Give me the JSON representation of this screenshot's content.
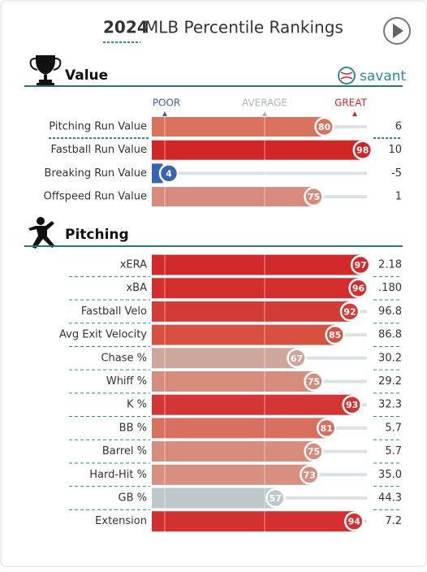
{
  "header": {
    "year": "2024",
    "title": "MLB Percentile Rankings",
    "brand": "savant"
  },
  "scale": {
    "labels": [
      "POOR",
      "AVERAGE",
      "GREAT"
    ]
  },
  "chart_data": [
    {
      "type": "percentile",
      "title": "Value",
      "xlim": [
        0,
        100
      ],
      "categories": [
        "Pitching Run Value",
        "Fastball Run Value",
        "Breaking Run Value",
        "Offspeed Run Value"
      ],
      "values": [
        80,
        98,
        4,
        75
      ],
      "colors": [
        "#d9735f",
        "#d22626",
        "#3862b2",
        "#d78b7c"
      ],
      "stats": [
        "6",
        "10",
        "-5",
        "1"
      ]
    },
    {
      "type": "percentile",
      "title": "Pitching",
      "xlim": [
        0,
        100
      ],
      "categories": [
        "xERA",
        "xBA",
        "Fastball Velo",
        "Avg Exit Velocity",
        "Chase %",
        "Whiff %",
        "K %",
        "BB %",
        "Barrel %",
        "Hard-Hit %",
        "GB %",
        "Extension"
      ],
      "values": [
        97,
        96,
        92,
        85,
        67,
        75,
        93,
        81,
        75,
        73,
        57,
        94
      ],
      "colors": [
        "#d22a2a",
        "#d32e2d",
        "#d43b34",
        "#d8503f",
        "#cfa69c",
        "#d78b7c",
        "#d33534",
        "#d96f5f",
        "#d78b7c",
        "#d79080",
        "#bcc8ca",
        "#d3302f"
      ],
      "stats": [
        "2.18",
        ".180",
        "96.8",
        "86.8",
        "30.2",
        "29.2",
        "32.3",
        "5.7",
        "5.7",
        "35.0",
        "44.3",
        "7.2"
      ]
    }
  ]
}
